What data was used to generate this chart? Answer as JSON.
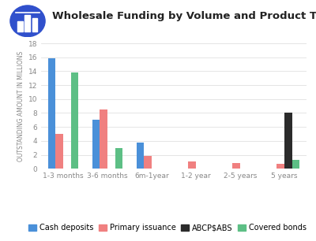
{
  "title": "Wholesale Funding by Volume and Product Type",
  "ylabel": "OUTSTANDING AMOUNT IN MILLIONS",
  "categories": [
    "1-3 months",
    "3-6 months",
    "6m-1year",
    "1-2 year",
    "2-5 years",
    "5 years"
  ],
  "series": {
    "Cash deposits": [
      15.9,
      7.0,
      3.8,
      0.0,
      0.0,
      0.0
    ],
    "Primary issuance": [
      5.0,
      8.5,
      1.8,
      1.0,
      0.8,
      0.7
    ],
    "ABCP$ABS": [
      0.0,
      0.0,
      0.0,
      0.0,
      0.0,
      8.0
    ],
    "Covered bonds": [
      13.8,
      3.0,
      0.0,
      0.0,
      0.0,
      1.3
    ]
  },
  "colors": {
    "Cash deposits": "#4A90D9",
    "Primary issuance": "#F08080",
    "ABCP$ABS": "#2B2B2B",
    "Covered bonds": "#5DBF85"
  },
  "ylim": [
    0,
    18
  ],
  "yticks": [
    0,
    2,
    4,
    6,
    8,
    10,
    12,
    14,
    16,
    18
  ],
  "background_color": "#ffffff",
  "grid_color": "#e0e0e0",
  "title_fontsize": 9.5,
  "ylabel_fontsize": 5.5,
  "legend_fontsize": 7,
  "tick_fontsize": 6.5,
  "bar_width": 0.17,
  "icon_color": "#3050CC",
  "title_color": "#222222",
  "tick_color": "#888888"
}
